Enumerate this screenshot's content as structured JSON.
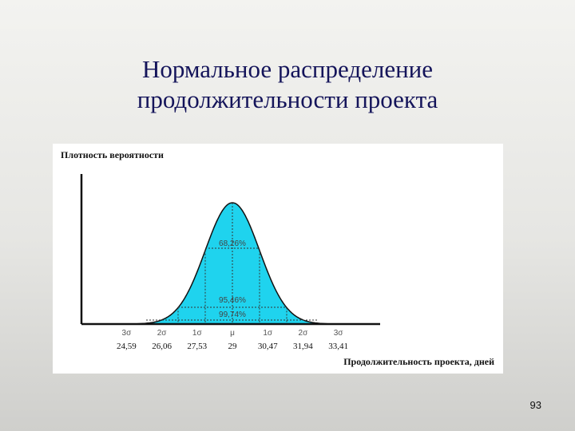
{
  "slide": {
    "title_line1": "Нормальное распределение",
    "title_line2": "продолжительности проекта",
    "page_number": "93"
  },
  "figure": {
    "ylabel": "Плотность вероятности",
    "xlabel": "Продолжительность проекта, дней",
    "sigma_labels": [
      "3σ",
      "2σ",
      "1σ",
      "μ",
      "1σ",
      "2σ",
      "3σ"
    ],
    "day_labels": [
      "24,59",
      "26,06",
      "27,53",
      "29",
      "30,47",
      "31,94",
      "33,41"
    ],
    "percent_labels": [
      "68,26%",
      "95,46%",
      "99,74%"
    ],
    "fill_color": "#1fd3ee",
    "line_color": "#111111"
  }
}
